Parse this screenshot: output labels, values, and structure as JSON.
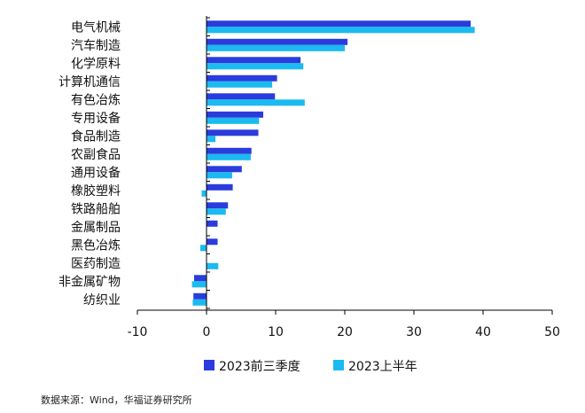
{
  "chart_data": {
    "type": "bar",
    "orientation": "horizontal",
    "categories": [
      "电气机械",
      "汽车制造",
      "化学原料",
      "计算机通信",
      "有色冶炼",
      "专用设备",
      "食品制造",
      "农副食品",
      "通用设备",
      "橡胶塑料",
      "铁路船舶",
      "金属制品",
      "黑色冶炼",
      "医药制造",
      "非金属矿物",
      "纺织业"
    ],
    "series": [
      {
        "name": "2023前三季度",
        "color": "#2a3cdc",
        "values": [
          38.2,
          20.4,
          13.6,
          10.2,
          9.9,
          8.2,
          7.5,
          6.5,
          5.1,
          3.8,
          3.1,
          1.6,
          1.6,
          0.0,
          -1.8,
          -1.9
        ]
      },
      {
        "name": "2023上半年",
        "color": "#1bbaf0",
        "values": [
          38.8,
          20.0,
          14.0,
          9.5,
          14.2,
          7.6,
          1.3,
          6.4,
          3.7,
          -0.7,
          2.8,
          0.0,
          -0.9,
          1.7,
          -2.1,
          -2.0
        ]
      }
    ],
    "xlim": [
      -10,
      50
    ],
    "xticks": [
      -10,
      0,
      10,
      20,
      30,
      40,
      50
    ],
    "grid": false,
    "legend_position": "bottom"
  },
  "source": "数据来源：Wind，华福证券研究所"
}
